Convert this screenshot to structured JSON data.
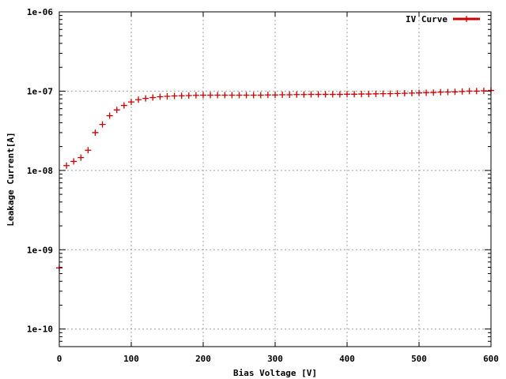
{
  "chart_data": {
    "type": "scatter",
    "xlabel": "Bias Voltage [V]",
    "ylabel": "Leakage Current[A]",
    "x_ticks": [
      "0",
      "100",
      "200",
      "300",
      "400",
      "500",
      "600"
    ],
    "x_tick_values": [
      0,
      100,
      200,
      300,
      400,
      500,
      600
    ],
    "y_ticks": [
      "1e-10",
      "1e-09",
      "1e-08",
      "1e-07",
      "1e-06"
    ],
    "y_tick_values": [
      1e-10,
      1e-09,
      1e-08,
      1e-07,
      1e-06
    ],
    "xlim": [
      0,
      600
    ],
    "ylim": [
      6e-11,
      1e-06
    ],
    "y_scale": "log",
    "grid": true,
    "legend_position": "top-right",
    "series": [
      {
        "name": "IV Curve",
        "color": "#cc0000",
        "marker": "plus",
        "x": [
          0,
          10,
          20,
          30,
          40,
          50,
          60,
          70,
          80,
          90,
          100,
          110,
          120,
          130,
          140,
          150,
          160,
          170,
          180,
          190,
          200,
          210,
          220,
          230,
          240,
          250,
          260,
          270,
          280,
          290,
          300,
          310,
          320,
          330,
          340,
          350,
          360,
          370,
          380,
          390,
          400,
          410,
          420,
          430,
          440,
          450,
          460,
          470,
          480,
          490,
          500,
          510,
          520,
          530,
          540,
          550,
          560,
          570,
          580,
          590,
          600
        ],
        "y": [
          5.9e-10,
          1.15e-08,
          1.3e-08,
          1.45e-08,
          1.8e-08,
          3e-08,
          3.8e-08,
          4.9e-08,
          5.8e-08,
          6.6e-08,
          7.3e-08,
          7.8e-08,
          8.1e-08,
          8.3e-08,
          8.5e-08,
          8.6e-08,
          8.7e-08,
          8.75e-08,
          8.8e-08,
          8.85e-08,
          8.9e-08,
          8.9e-08,
          8.9e-08,
          8.9e-08,
          8.9e-08,
          8.9e-08,
          8.9e-08,
          8.9e-08,
          8.9e-08,
          8.95e-08,
          8.95e-08,
          9e-08,
          9e-08,
          9.05e-08,
          9.05e-08,
          9.1e-08,
          9.1e-08,
          9.1e-08,
          9.1e-08,
          9.1e-08,
          9.15e-08,
          9.15e-08,
          9.2e-08,
          9.2e-08,
          9.25e-08,
          9.3e-08,
          9.3e-08,
          9.35e-08,
          9.4e-08,
          9.45e-08,
          9.5e-08,
          9.55e-08,
          9.6e-08,
          9.7e-08,
          9.75e-08,
          9.8e-08,
          9.9e-08,
          1e-07,
          1e-07,
          1.01e-07,
          1.02e-07
        ]
      }
    ]
  }
}
